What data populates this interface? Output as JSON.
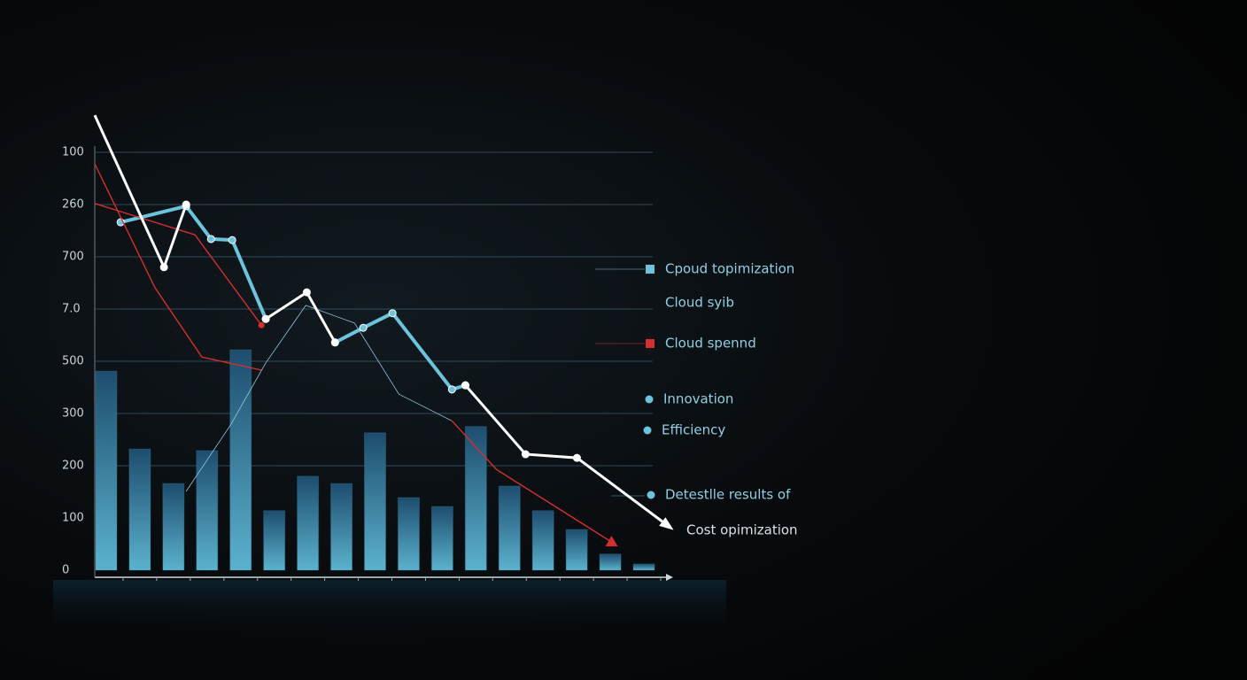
{
  "chart_data": {
    "type": "bar",
    "categories": [
      null,
      null,
      null,
      null,
      null,
      null,
      null,
      null,
      null,
      null,
      null,
      null,
      null,
      null,
      null,
      null,
      null
    ],
    "values": [
      3.81,
      2.32,
      1.66,
      2.29,
      4.22,
      1.14,
      1.8,
      1.66,
      2.63,
      1.39,
      1.22,
      2.75,
      1.61,
      1.14,
      0.78,
      0.31,
      0.12
    ],
    "color": "#3d86a8",
    "xlim": [
      0,
      17
    ],
    "ylim": [
      0,
      9
    ],
    "yticks": [
      0,
      {
        "value": 1,
        "label": "100"
      },
      {
        "value": 2,
        "label": "200"
      },
      {
        "value": 3,
        "label": "300"
      },
      {
        "value": 4,
        "label": "500"
      },
      {
        "value": 5,
        "label": "7.0"
      },
      {
        "value": 6,
        "label": "700"
      },
      {
        "value": 7,
        "label": "260"
      },
      {
        "value": 8,
        "label": "100"
      }
    ],
    "grid": true,
    "series": [
      {
        "name": "Cpoud topimization",
        "color": "#6cc3dc",
        "type": "line",
        "x": [
          0.77,
          2.72,
          3.46,
          4.09,
          5.09,
          null,
          7.15,
          7.99,
          8.86,
          10.63,
          11.03
        ],
        "values": [
          6.66,
          6.97,
          6.34,
          6.32,
          4.81,
          null,
          4.36,
          4.64,
          4.92,
          3.46,
          3.54
        ]
      },
      {
        "name": "Cloud syib",
        "color": "#8fc9dc",
        "type": "line",
        "x": [
          2.72,
          4.04,
          5.09,
          6.28,
          7.73,
          9.05,
          10.63
        ],
        "values": [
          1.51,
          2.78,
          3.97,
          5.07,
          4.73,
          3.37,
          2.86
        ]
      },
      {
        "name": "Cloud spennd",
        "color": "#d32f2f",
        "type": "line",
        "x": [
          0,
          1.79,
          3.19,
          4.96,
          null,
          0,
          2.98,
          4.96,
          null,
          10.63,
          11.95,
          15.38
        ],
        "values": [
          7.78,
          5.41,
          4.08,
          3.83,
          null,
          7.02,
          6.42,
          4.69,
          null,
          2.86,
          1.93,
          0.54
        ]
      },
      {
        "name": "Cost opimization",
        "color": "#ffffff",
        "type": "line",
        "x": [
          0,
          2.06,
          2.72,
          null,
          5.09,
          6.31,
          7.15,
          null,
          11.03,
          12.82,
          14.35,
          17.1
        ],
        "values": [
          8.71,
          5.8,
          7.0,
          null,
          4.81,
          5.32,
          4.36,
          null,
          3.54,
          2.22,
          2.15,
          0.83
        ]
      }
    ],
    "annotations": [
      "Innovation",
      "Efficiency",
      "Detestlle results of"
    ]
  }
}
